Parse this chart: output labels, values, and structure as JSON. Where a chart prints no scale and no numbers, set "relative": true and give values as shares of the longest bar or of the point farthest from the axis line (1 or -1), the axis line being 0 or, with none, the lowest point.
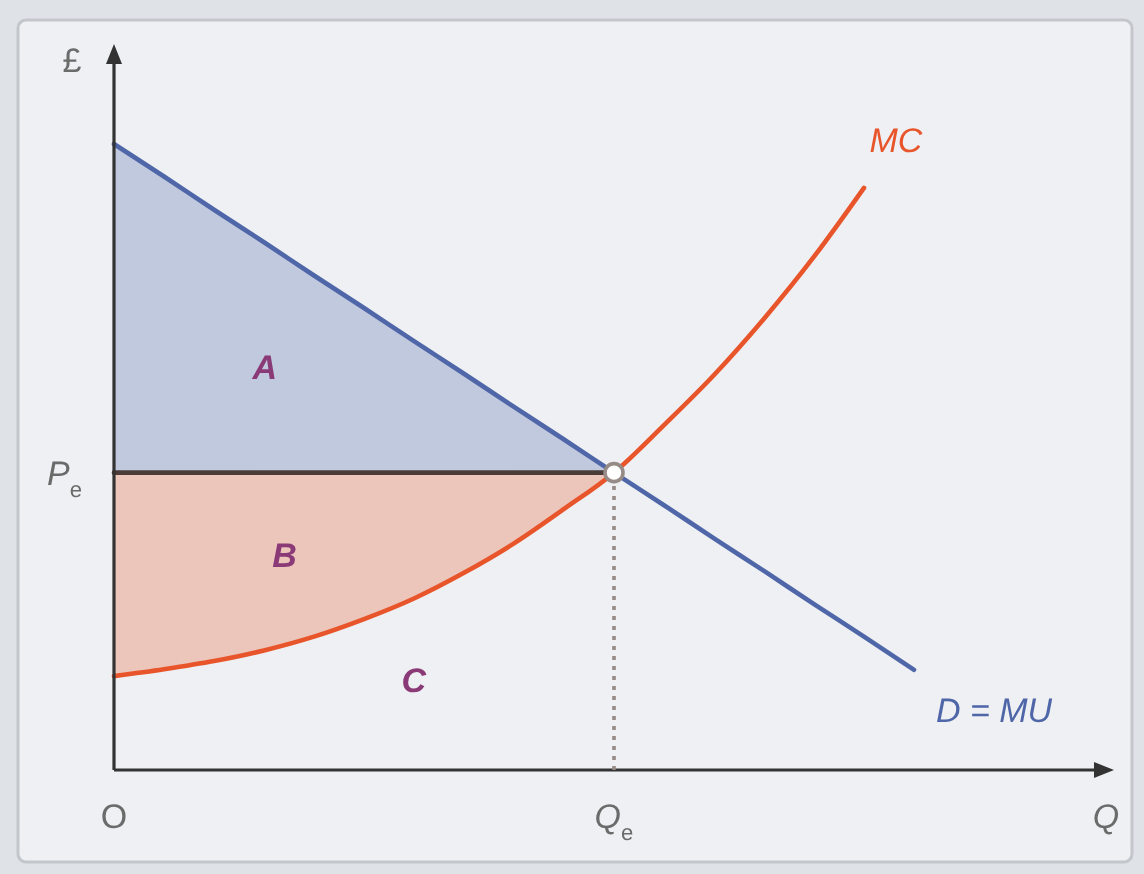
{
  "chart_data": {
    "type": "line",
    "relative": true,
    "xlabel": "Q",
    "ylabel": "£",
    "categories": [
      "O",
      null,
      null,
      null,
      null,
      null,
      null,
      null,
      null,
      null,
      "Q$_{e}$",
      null,
      null,
      null,
      null,
      null,
      null,
      null,
      null,
      null,
      null
    ],
    "series": [
      {
        "name": "D = MU",
        "color": "#4f66a8",
        "values": [
          1,
          0.948,
          0.895,
          0.843,
          0.79,
          0.738,
          0.685,
          0.633,
          0.58,
          0.528,
          0.475,
          0.423,
          0.37,
          0.318,
          0.265,
          0.213,
          0.16,
          null,
          null,
          null,
          null
        ]
      },
      {
        "name": "MC",
        "color": "#e8552b",
        "values": [
          0.15,
          0.161,
          0.174,
          0.191,
          0.213,
          0.241,
          0.274,
          0.315,
          0.362,
          0.417,
          0.475,
          0.551,
          0.631,
          0.721,
          0.82,
          0.93,
          null,
          null,
          null,
          null,
          null
        ]
      },
      {
        "name": "P$_{e}$",
        "color": "#4b3b38",
        "values": [
          0.475,
          0.475,
          0.475,
          0.475,
          0.475,
          0.475,
          0.475,
          0.475,
          0.475,
          0.475,
          0.475,
          null,
          null,
          null,
          null,
          null,
          null,
          null,
          null,
          null,
          null
        ]
      },
      {
        "type": "lollipop",
        "color": "#968b86",
        "line_style": "dotted",
        "marker": "circle",
        "values": [
          null,
          null,
          null,
          null,
          null,
          null,
          null,
          null,
          null,
          null,
          0.475,
          null,
          null,
          null,
          null,
          null,
          null,
          null,
          null,
          null,
          null
        ]
      }
    ],
    "annotations": [
      "A",
      "B",
      "C"
    ]
  }
}
